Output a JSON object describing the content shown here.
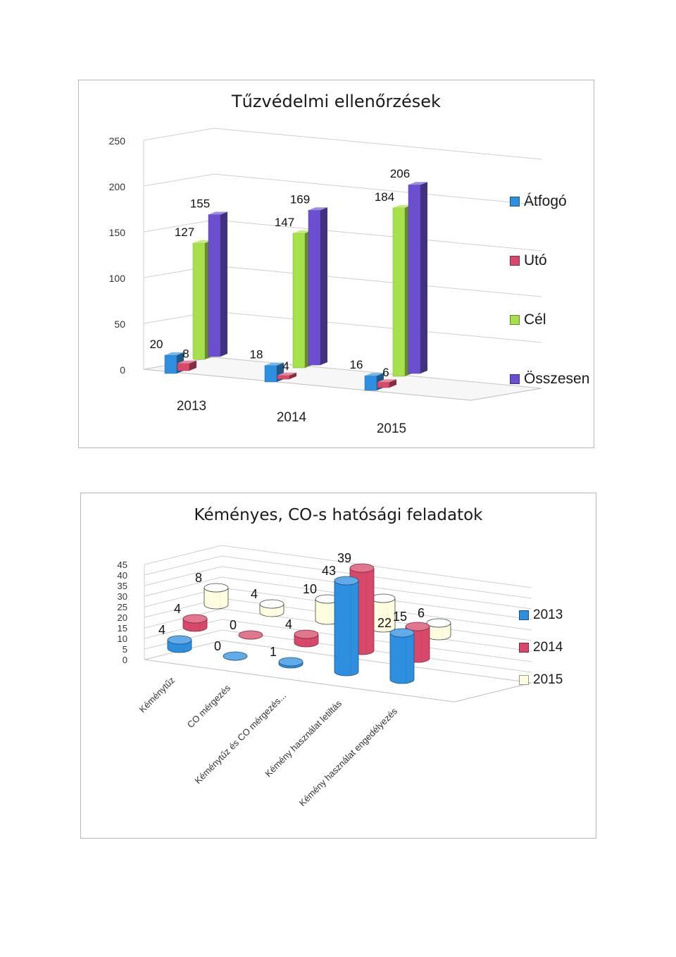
{
  "chart_data": [
    {
      "type": "bar",
      "title": "Tűzvédelmi ellenőrzések",
      "categories": [
        "2013",
        "2014",
        "2015"
      ],
      "series": [
        {
          "name": "Átfogó",
          "values": [
            20,
            18,
            16
          ],
          "color": "#2e8fe0"
        },
        {
          "name": "Utó",
          "values": [
            8,
            4,
            6
          ],
          "color": "#d8486a"
        },
        {
          "name": "Cél",
          "values": [
            127,
            147,
            184
          ],
          "color": "#a6e04a"
        },
        {
          "name": "Összesen",
          "values": [
            155,
            169,
            206
          ],
          "color": "#6b4fd0"
        }
      ],
      "yticks": [
        "0",
        "50",
        "100",
        "150",
        "200",
        "250"
      ],
      "ylim": [
        0,
        250
      ],
      "grid": true,
      "legend": "right"
    },
    {
      "type": "bar",
      "title": "Kéményes, CO-s hatósági feladatok",
      "categories": [
        "Kéménytűz",
        "CO mérgezés",
        "Kéménytűz és CO mérgezés...",
        "Kémény használat letiltás",
        "Kémény használat engedélyezés"
      ],
      "series": [
        {
          "name": "2013",
          "values": [
            4,
            0,
            1,
            43,
            22
          ],
          "color": "#2e8fe0"
        },
        {
          "name": "2014",
          "values": [
            4,
            0,
            4,
            39,
            15
          ],
          "color": "#d8486a"
        },
        {
          "name": "2015",
          "values": [
            8,
            4,
            10,
            14,
            6
          ],
          "color": "#fffde0"
        }
      ],
      "yticks": [
        "0",
        "5",
        "10",
        "15",
        "20",
        "25",
        "30",
        "35",
        "40",
        "45"
      ],
      "ylim": [
        0,
        45
      ],
      "grid": true,
      "legend": "right"
    }
  ]
}
